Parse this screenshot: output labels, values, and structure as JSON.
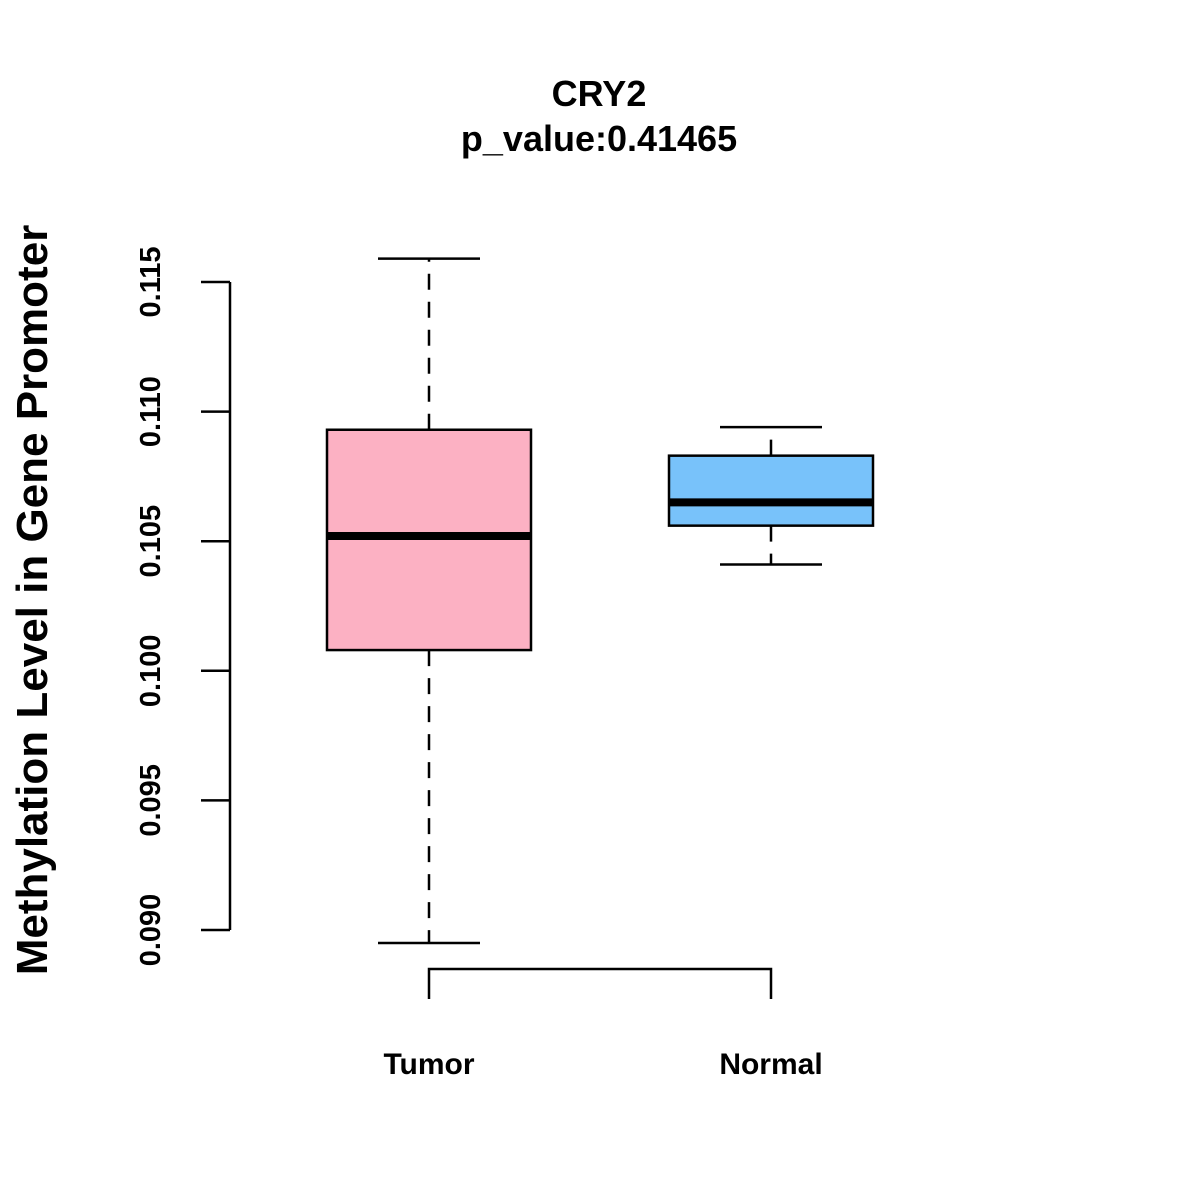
{
  "chart_data": {
    "type": "box",
    "title": "CRY2",
    "subtitle": "p_value:0.41465",
    "xlabel": "",
    "ylabel": "Methylation Level in Gene Promoter",
    "ylim": [
      0.09,
      0.115
    ],
    "yticks": [
      0.09,
      0.095,
      0.1,
      0.105,
      0.11,
      0.115
    ],
    "ytick_labels": [
      "0.090",
      "0.095",
      "0.100",
      "0.105",
      "0.110",
      "0.115"
    ],
    "categories": [
      "Tumor",
      "Normal"
    ],
    "boxes": [
      {
        "name": "Tumor",
        "whisker_low": 0.0895,
        "q1": 0.1008,
        "median": 0.1052,
        "q3": 0.1093,
        "whisker_high": 0.1159,
        "color": "#FCB1C3"
      },
      {
        "name": "Normal",
        "whisker_low": 0.1041,
        "q1": 0.1056,
        "median": 0.1065,
        "q3": 0.1083,
        "whisker_high": 0.1094,
        "color": "#78C2FA"
      }
    ],
    "annotation": "bracket between Tumor and Normal",
    "grid": false,
    "legend": "none"
  }
}
